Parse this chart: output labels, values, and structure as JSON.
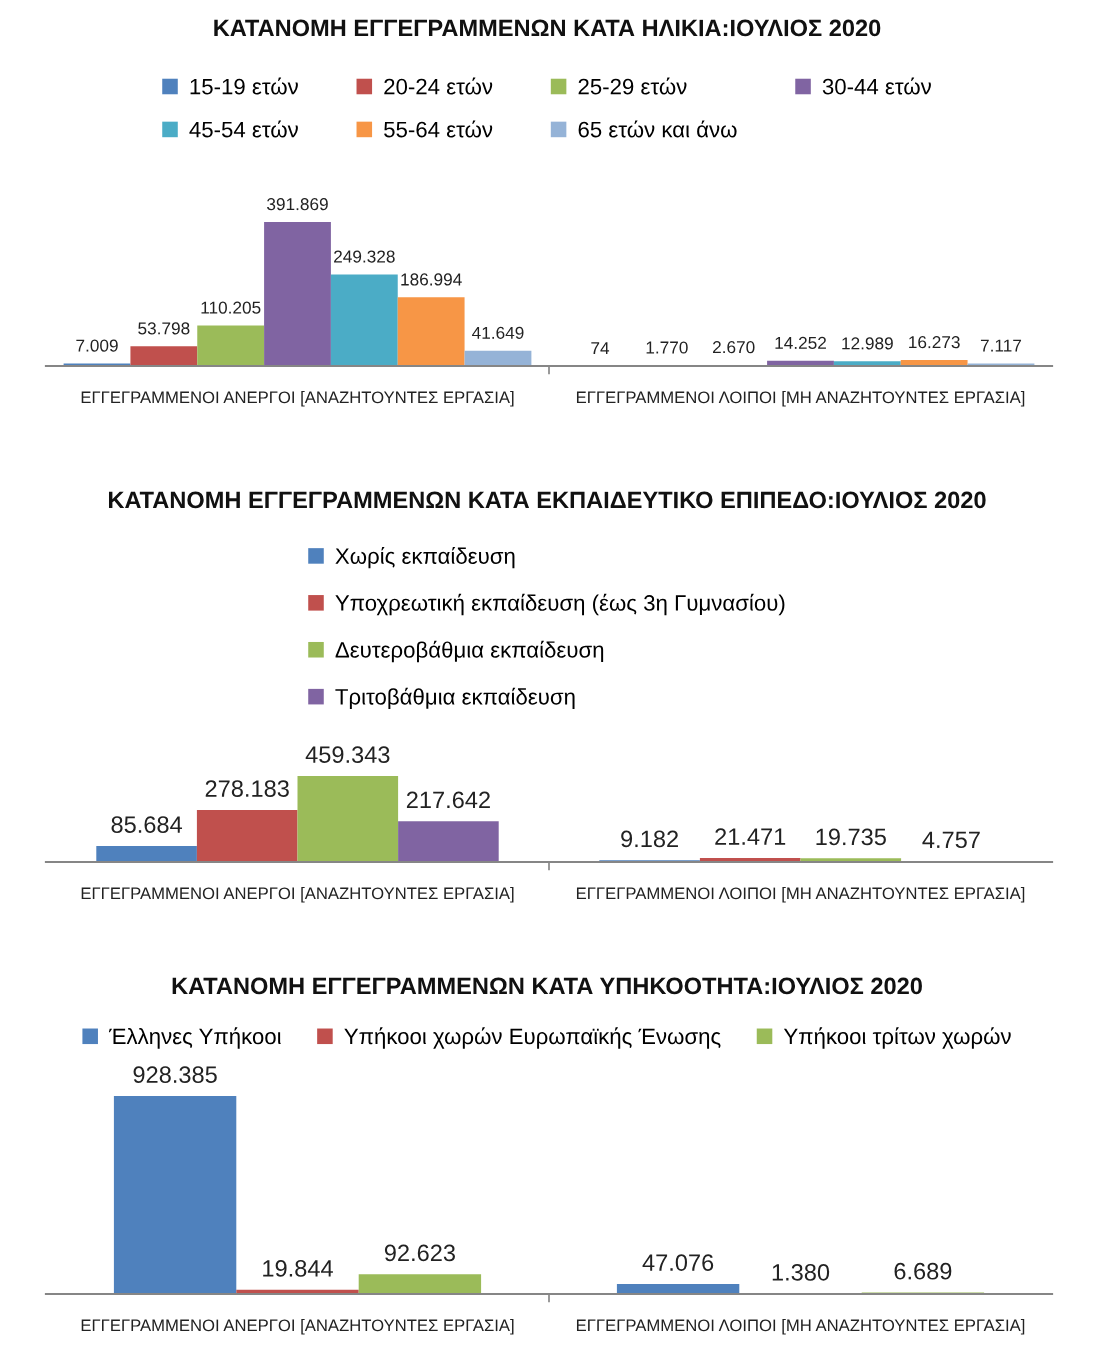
{
  "chart_data": [
    {
      "type": "bar",
      "title": "ΚΑΤΑΝΟΜΗ ΕΓΓΕΓΡΑΜΜΕΝΩΝ ΚΑΤΑ ΗΛΙΚΙΑ:ΙΟΥΛΙΟΣ 2020",
      "categories": [
        "ΕΓΓΕΓΡΑΜΜΕΝΟΙ ΑΝΕΡΓΟΙ [ΑΝΑΖΗΤΟΥΝΤΕΣ ΕΡΓΑΣΙΑ]",
        "ΕΓΓΕΓΡΑΜΜΕΝΟΙ ΛΟΙΠΟΙ [ΜΗ ΑΝΑΖΗΤΟΥΝΤΕΣ ΕΡΓΑΣΙΑ]"
      ],
      "legend": "top",
      "series": [
        {
          "name": "15-19 ετών",
          "color": "#4f81bd",
          "values": [
            7009,
            74
          ],
          "value_labels": [
            "7.009",
            "74"
          ]
        },
        {
          "name": "20-24 ετών",
          "color": "#c0504d",
          "values": [
            53798,
            1770
          ],
          "value_labels": [
            "53.798",
            "1.770"
          ]
        },
        {
          "name": "25-29 ετών",
          "color": "#9bbb59",
          "values": [
            110205,
            2670
          ],
          "value_labels": [
            "110.205",
            "2.670"
          ]
        },
        {
          "name": "30-44 ετών",
          "color": "#8064a2",
          "values": [
            391869,
            14252
          ],
          "value_labels": [
            "391.869",
            "14.252"
          ]
        },
        {
          "name": "45-54 ετών",
          "color": "#4bacc6",
          "values": [
            249328,
            12989
          ],
          "value_labels": [
            "249.328",
            "12.989"
          ]
        },
        {
          "name": "55-64 ετών",
          "color": "#f79646",
          "values": [
            186994,
            16273
          ],
          "value_labels": [
            "186.994",
            "16.273"
          ]
        },
        {
          "name": "65 ετών και άνω",
          "color": "#95b3d7",
          "values": [
            41649,
            7117
          ],
          "value_labels": [
            "41.649",
            "7.117"
          ]
        }
      ]
    },
    {
      "type": "bar",
      "title": "ΚΑΤΑΝΟΜΗ ΕΓΓΕΓΡΑΜΜΕΝΩΝ ΚΑΤΑ ΕΚΠΑΙΔΕΥΤΙΚΟ ΕΠΙΠΕΔΟ:ΙΟΥΛΙΟΣ 2020",
      "categories": [
        "ΕΓΓΕΓΡΑΜΜΕΝΟΙ ΑΝΕΡΓΟΙ [ΑΝΑΖΗΤΟΥΝΤΕΣ ΕΡΓΑΣΙΑ]",
        "ΕΓΓΕΓΡΑΜΜΕΝΟΙ ΛΟΙΠΟΙ [ΜΗ ΑΝΑΖΗΤΟΥΝΤΕΣ ΕΡΓΑΣΙΑ]"
      ],
      "legend": "top",
      "series": [
        {
          "name": "Χωρίς εκπαίδευση",
          "color": "#4f81bd",
          "values": [
            85684,
            9182
          ],
          "value_labels": [
            "85.684",
            "9.182"
          ]
        },
        {
          "name": "Υποχρεωτική εκπαίδευση (έως 3η Γυμνασίου)",
          "color": "#c0504d",
          "values": [
            278183,
            21471
          ],
          "value_labels": [
            "278.183",
            "21.471"
          ]
        },
        {
          "name": "Δευτεροβάθμια εκπαίδευση",
          "color": "#9bbb59",
          "values": [
            459343,
            19735
          ],
          "value_labels": [
            "459.343",
            "19.735"
          ]
        },
        {
          "name": "Τριτοβάθμια εκπαίδευση",
          "color": "#8064a2",
          "values": [
            217642,
            4757
          ],
          "value_labels": [
            "217.642",
            "4.757"
          ]
        }
      ]
    },
    {
      "type": "bar",
      "title": "ΚΑΤΑΝΟΜΗ ΕΓΓΕΓΡΑΜΜΕΝΩΝ ΚΑΤΑ ΥΠΗΚΟΟΤΗΤΑ:ΙΟΥΛΙΟΣ 2020",
      "categories": [
        "ΕΓΓΕΓΡΑΜΜΕΝΟΙ ΑΝΕΡΓΟΙ [ΑΝΑΖΗΤΟΥΝΤΕΣ ΕΡΓΑΣΙΑ]",
        "ΕΓΓΕΓΡΑΜΜΕΝΟΙ ΛΟΙΠΟΙ [ΜΗ ΑΝΑΖΗΤΟΥΝΤΕΣ ΕΡΓΑΣΙΑ]"
      ],
      "legend": "top",
      "series": [
        {
          "name": "Έλληνες Υπήκοοι",
          "color": "#4f81bd",
          "values": [
            928385,
            47076
          ],
          "value_labels": [
            "928.385",
            "47.076"
          ]
        },
        {
          "name": "Υπήκοοι χωρών Ευρωπαϊκής Ένωσης",
          "color": "#c0504d",
          "values": [
            19844,
            1380
          ],
          "value_labels": [
            "19.844",
            "1.380"
          ]
        },
        {
          "name": "Υπήκοοι τρίτων χωρών",
          "color": "#9bbb59",
          "values": [
            92623,
            6689
          ],
          "value_labels": [
            "92.623",
            "6.689"
          ]
        }
      ]
    }
  ]
}
